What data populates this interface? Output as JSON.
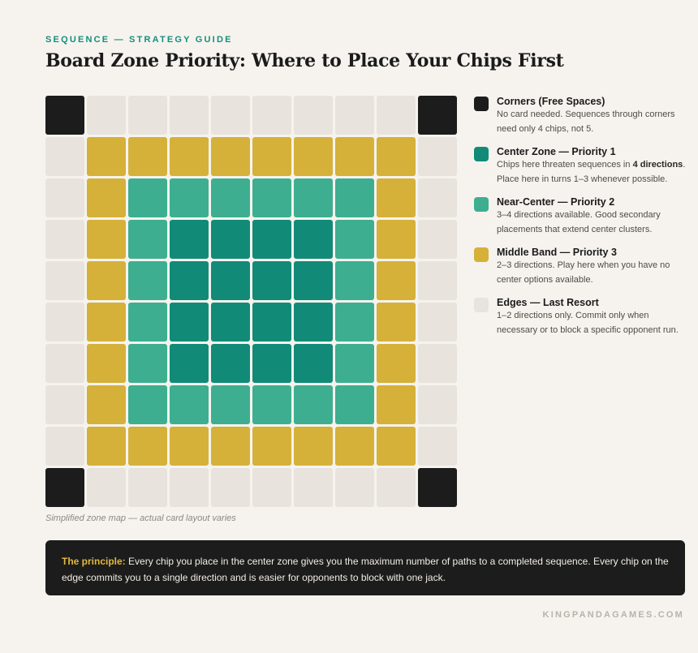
{
  "header": {
    "kicker": "SEQUENCE — STRATEGY GUIDE",
    "title": "Board Zone Priority: Where to Place Your Chips First"
  },
  "board": {
    "rows": [
      [
        "corner",
        "edge",
        "edge",
        "edge",
        "edge",
        "edge",
        "edge",
        "edge",
        "edge",
        "corner"
      ],
      [
        "edge",
        "middle",
        "middle",
        "middle",
        "middle",
        "middle",
        "middle",
        "middle",
        "middle",
        "edge"
      ],
      [
        "edge",
        "middle",
        "near",
        "near",
        "near",
        "near",
        "near",
        "near",
        "middle",
        "edge"
      ],
      [
        "edge",
        "middle",
        "near",
        "center",
        "center",
        "center",
        "center",
        "near",
        "middle",
        "edge"
      ],
      [
        "edge",
        "middle",
        "near",
        "center",
        "center",
        "center",
        "center",
        "near",
        "middle",
        "edge"
      ],
      [
        "edge",
        "middle",
        "near",
        "center",
        "center",
        "center",
        "center",
        "near",
        "middle",
        "edge"
      ],
      [
        "edge",
        "middle",
        "near",
        "center",
        "center",
        "center",
        "center",
        "near",
        "middle",
        "edge"
      ],
      [
        "edge",
        "middle",
        "near",
        "near",
        "near",
        "near",
        "near",
        "near",
        "middle",
        "edge"
      ],
      [
        "edge",
        "middle",
        "middle",
        "middle",
        "middle",
        "middle",
        "middle",
        "middle",
        "middle",
        "edge"
      ],
      [
        "corner",
        "edge",
        "edge",
        "edge",
        "edge",
        "edge",
        "edge",
        "edge",
        "edge",
        "corner"
      ]
    ],
    "caption": "Simplified zone map — actual card layout varies"
  },
  "colors": {
    "corner": "#1c1c1c",
    "center": "#118b78",
    "near": "#3daf90",
    "middle": "#d5b13a",
    "edge": "#e8e3dc",
    "accent_teal": "#148f7d",
    "accent_gold": "#e0b83e"
  },
  "legend": {
    "corners": {
      "title": "Corners (Free Spaces)",
      "desc": "No card needed. Sequences through corners need only 4 chips, not 5."
    },
    "center": {
      "title": "Center Zone — Priority 1",
      "desc_before": "Chips here threaten sequences in ",
      "desc_bold": "4 directions",
      "desc_after": ". Place here in turns 1–3 whenever possible."
    },
    "near": {
      "title": "Near-Center — Priority 2",
      "desc": "3–4 directions available. Good secondary placements that extend center clusters."
    },
    "middle": {
      "title": "Middle Band — Priority 3",
      "desc": "2–3 directions. Play here when you have no center options available."
    },
    "edges": {
      "title": "Edges — Last Resort",
      "desc": "1–2 directions only. Commit only when necessary or to block a specific opponent run."
    }
  },
  "principle": {
    "lead": "The principle:",
    "text": " Every chip you place in the center zone gives you the maximum number of paths to a completed sequence. Every chip on the edge commits you to a single direction and is easier for opponents to block with one jack."
  },
  "footer": {
    "site": "KINGPANDAGAMES.COM"
  }
}
